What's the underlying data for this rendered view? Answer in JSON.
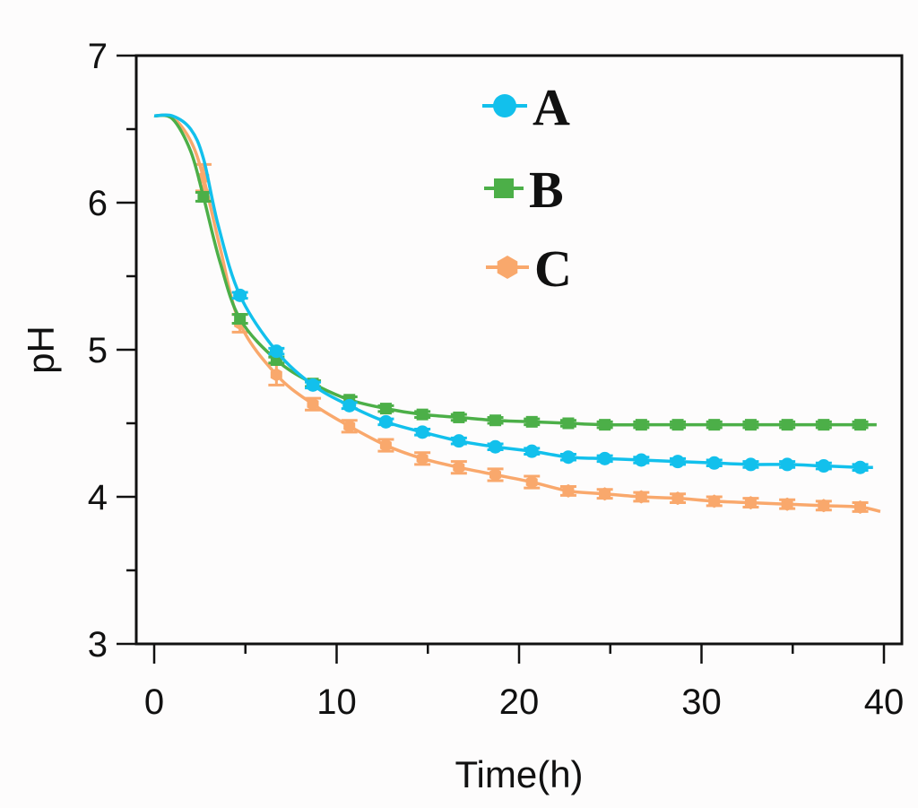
{
  "chart_data": {
    "type": "line",
    "title": "",
    "xlabel": "Time(h)",
    "ylabel": "pH",
    "xlim": [
      -1,
      41
    ],
    "ylim": [
      3,
      7
    ],
    "xticks": [
      "0",
      "10",
      "20",
      "30",
      "40"
    ],
    "xtick_values": [
      0,
      10,
      20,
      30,
      40
    ],
    "yticks": [
      "3",
      "4",
      "5",
      "6",
      "7"
    ],
    "ytick_values": [
      3,
      4,
      5,
      6,
      7
    ],
    "grid": false,
    "legend_position": "top-center",
    "series": [
      {
        "name": "A",
        "color": "#12c0ec",
        "marker": "circle",
        "curve": [
          [
            0,
            6.59
          ],
          [
            1,
            6.59
          ],
          [
            2,
            6.5
          ],
          [
            2.7,
            6.3
          ],
          [
            3.5,
            5.85
          ],
          [
            4.7,
            5.37
          ],
          [
            6.7,
            4.99
          ],
          [
            8.7,
            4.76
          ],
          [
            10.7,
            4.62
          ],
          [
            12.7,
            4.51
          ],
          [
            14.7,
            4.44
          ],
          [
            16.7,
            4.38
          ],
          [
            18.7,
            4.34
          ],
          [
            20.7,
            4.31
          ],
          [
            22.7,
            4.27
          ],
          [
            24.7,
            4.26
          ],
          [
            26.7,
            4.25
          ],
          [
            28.7,
            4.24
          ],
          [
            30.7,
            4.23
          ],
          [
            32.7,
            4.22
          ],
          [
            34.7,
            4.22
          ],
          [
            36.7,
            4.21
          ],
          [
            38.7,
            4.2
          ],
          [
            39.4,
            4.2
          ]
        ],
        "points": {
          "x": [
            4.7,
            6.7,
            8.7,
            10.7,
            12.7,
            14.7,
            16.7,
            18.7,
            20.7,
            22.7,
            24.7,
            26.7,
            28.7,
            30.7,
            32.7,
            34.7,
            36.7,
            38.7
          ],
          "y": [
            5.37,
            4.99,
            4.76,
            4.62,
            4.51,
            4.44,
            4.38,
            4.34,
            4.31,
            4.27,
            4.26,
            4.25,
            4.24,
            4.23,
            4.22,
            4.22,
            4.21,
            4.2
          ],
          "err": [
            0.02,
            0.02,
            0.02,
            0.02,
            0.02,
            0.02,
            0.02,
            0.02,
            0.02,
            0.02,
            0.02,
            0.02,
            0.02,
            0.02,
            0.02,
            0.02,
            0.02,
            0.02
          ]
        }
      },
      {
        "name": "B",
        "color": "#4caf48",
        "marker": "square",
        "curve": [
          [
            0,
            6.59
          ],
          [
            1,
            6.57
          ],
          [
            2,
            6.35
          ],
          [
            2.7,
            6.04
          ],
          [
            3.6,
            5.6
          ],
          [
            4.7,
            5.21
          ],
          [
            6.7,
            4.93
          ],
          [
            8.7,
            4.77
          ],
          [
            10.7,
            4.66
          ],
          [
            12.7,
            4.6
          ],
          [
            14.7,
            4.56
          ],
          [
            16.7,
            4.54
          ],
          [
            18.7,
            4.52
          ],
          [
            20.7,
            4.51
          ],
          [
            22.7,
            4.5
          ],
          [
            24.7,
            4.49
          ],
          [
            26.7,
            4.49
          ],
          [
            28.7,
            4.49
          ],
          [
            30.7,
            4.49
          ],
          [
            32.7,
            4.49
          ],
          [
            34.7,
            4.49
          ],
          [
            36.7,
            4.49
          ],
          [
            38.7,
            4.49
          ],
          [
            39.6,
            4.49
          ]
        ],
        "points": {
          "x": [
            2.7,
            4.7,
            6.7,
            8.7,
            10.7,
            12.7,
            14.7,
            16.7,
            18.7,
            20.7,
            22.7,
            24.7,
            26.7,
            28.7,
            30.7,
            32.7,
            34.7,
            36.7,
            38.7
          ],
          "y": [
            6.04,
            5.21,
            4.93,
            4.77,
            4.66,
            4.6,
            4.56,
            4.54,
            4.52,
            4.51,
            4.5,
            4.49,
            4.49,
            4.49,
            4.49,
            4.49,
            4.49,
            4.49,
            4.49
          ],
          "err": [
            0.03,
            0.03,
            0.02,
            0.02,
            0.02,
            0.02,
            0.02,
            0.02,
            0.02,
            0.02,
            0.02,
            0.02,
            0.02,
            0.02,
            0.02,
            0.02,
            0.02,
            0.02,
            0.02
          ]
        }
      },
      {
        "name": "C",
        "color": "#f9a86c",
        "marker": "hexagon",
        "curve": [
          [
            0,
            6.59
          ],
          [
            1,
            6.58
          ],
          [
            2,
            6.42
          ],
          [
            2.7,
            6.17
          ],
          [
            3.6,
            5.7
          ],
          [
            4.7,
            5.18
          ],
          [
            6.7,
            4.83
          ],
          [
            8.7,
            4.63
          ],
          [
            10.7,
            4.48
          ],
          [
            12.7,
            4.35
          ],
          [
            14.7,
            4.26
          ],
          [
            16.7,
            4.2
          ],
          [
            18.7,
            4.15
          ],
          [
            20.7,
            4.1
          ],
          [
            22.7,
            4.04
          ],
          [
            24.7,
            4.02
          ],
          [
            26.7,
            4.0
          ],
          [
            28.7,
            3.99
          ],
          [
            30.7,
            3.97
          ],
          [
            32.7,
            3.96
          ],
          [
            34.7,
            3.95
          ],
          [
            36.7,
            3.94
          ],
          [
            38.7,
            3.93
          ],
          [
            39.8,
            3.9
          ]
        ],
        "points": {
          "x": [
            2.7,
            4.7,
            6.7,
            8.7,
            10.7,
            12.7,
            14.7,
            16.7,
            18.7,
            20.7,
            22.7,
            24.7,
            26.7,
            28.7,
            30.7,
            32.7,
            34.7,
            36.7,
            38.7
          ],
          "y": [
            6.17,
            5.18,
            4.83,
            4.63,
            4.48,
            4.35,
            4.26,
            4.2,
            4.15,
            4.1,
            4.04,
            4.02,
            4.0,
            3.99,
            3.97,
            3.96,
            3.95,
            3.94,
            3.93
          ],
          "err": [
            0.09,
            0.06,
            0.07,
            0.04,
            0.04,
            0.04,
            0.04,
            0.04,
            0.04,
            0.04,
            0.03,
            0.03,
            0.03,
            0.03,
            0.03,
            0.03,
            0.03,
            0.03,
            0.03
          ]
        }
      }
    ]
  }
}
